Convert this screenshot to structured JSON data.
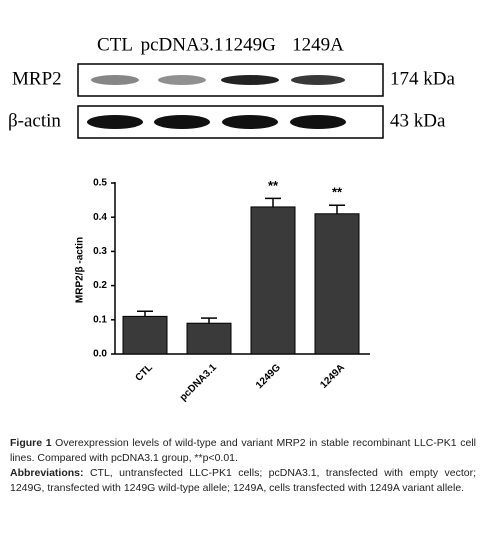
{
  "blot": {
    "lanes": [
      "CTL",
      "pcDNA3.1",
      "1249G",
      "1249A"
    ],
    "rows": [
      {
        "label": "MRP2",
        "size": "174 kDa"
      },
      {
        "label": "β-actin",
        "size": "43 kDa"
      }
    ]
  },
  "chart_data": {
    "type": "bar",
    "y_label": "MRP2/β -actin",
    "categories": [
      "CTL",
      "pcDNA3.1",
      "1249G",
      "1249A"
    ],
    "values": [
      0.11,
      0.09,
      0.43,
      0.41
    ],
    "errors": [
      0.015,
      0.015,
      0.025,
      0.025
    ],
    "color": "#3a3a3a",
    "ylim": [
      0,
      0.5
    ],
    "yticks": [
      {
        "value": 0,
        "label": "0.0"
      },
      0.1,
      0.2,
      0.3,
      0.4,
      0.5
    ],
    "annotations": [
      {
        "category": "1249G",
        "text": "**"
      },
      {
        "category": "1249A",
        "text": "**"
      }
    ]
  },
  "caption": {
    "figure_label": "Figure 1",
    "figure_text": "Overexpression levels of wild-type and variant MRP2 in stable recombinant LLC-PK1 cell lines. Compared with pcDNA3.1 group, **p<0.01.",
    "abbreviations_label": "Abbreviations:",
    "abbreviations_text": "CTL, untransfected LLC-PK1 cells; pcDNA3.1, transfected with empty vector; 1249G, transfected with 1249G wild-type allele; 1249A, cells transfected with 1249A variant allele."
  }
}
